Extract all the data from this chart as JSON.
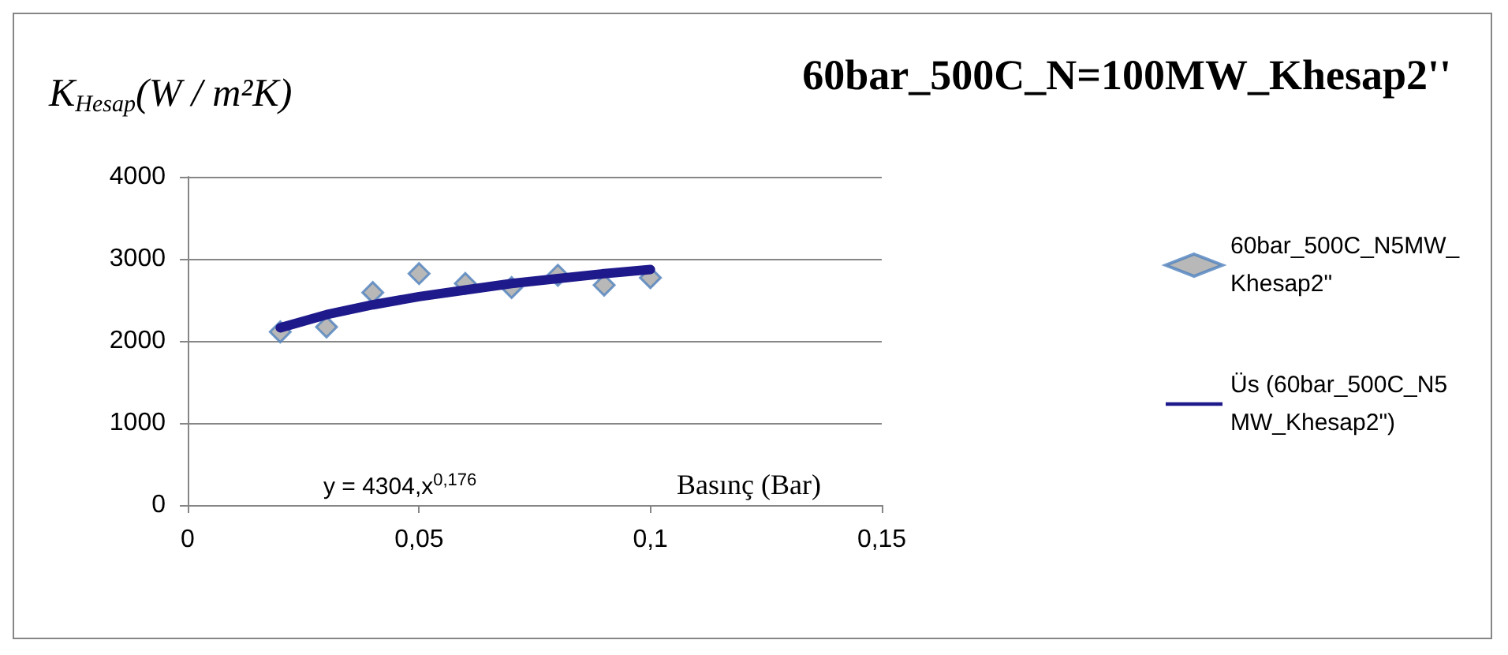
{
  "chart_data": {
    "type": "scatter",
    "title": "60bar_500C_N=100MW_Khesap2''",
    "ylabel": "K$_{Hesap}$(W / m²K)",
    "xlabel": "Basınç (Bar)",
    "annotations": [
      "y = 4304,x$^{0,176}$"
    ],
    "series": [
      {
        "name": "60bar_500C_N5MW_Khesap2\"",
        "color": "#a6a6a6",
        "marker": "diamond",
        "x": [
          0.02,
          0.03,
          0.04,
          0.05,
          0.06,
          0.07,
          0.08,
          0.09,
          0.1
        ],
        "values": [
          2110,
          2170,
          2590,
          2820,
          2700,
          2650,
          2800,
          2680,
          2770
        ]
      },
      {
        "name": "Üs (60bar_500C_N5MW_Khesap2\")",
        "type": "line",
        "color": "#1f1a8c",
        "marker": "none",
        "x": [
          0.02,
          0.03,
          0.04,
          0.05,
          0.06,
          0.07,
          0.08,
          0.09,
          0.1
        ],
        "values": [
          2160,
          2320,
          2440,
          2540,
          2620,
          2700,
          2760,
          2820,
          2870
        ]
      }
    ],
    "xlim": [
      0,
      0.15
    ],
    "xticks": [
      0,
      {
        "value": 0.05,
        "label": "0,05"
      },
      {
        "value": 0.1,
        "label": "0,1"
      },
      {
        "value": 0.15,
        "label": "0,15"
      }
    ],
    "ylim": [
      0,
      4000
    ],
    "yticks": [
      0,
      1000,
      2000,
      3000,
      4000
    ],
    "grid": "y",
    "legend": "right"
  }
}
